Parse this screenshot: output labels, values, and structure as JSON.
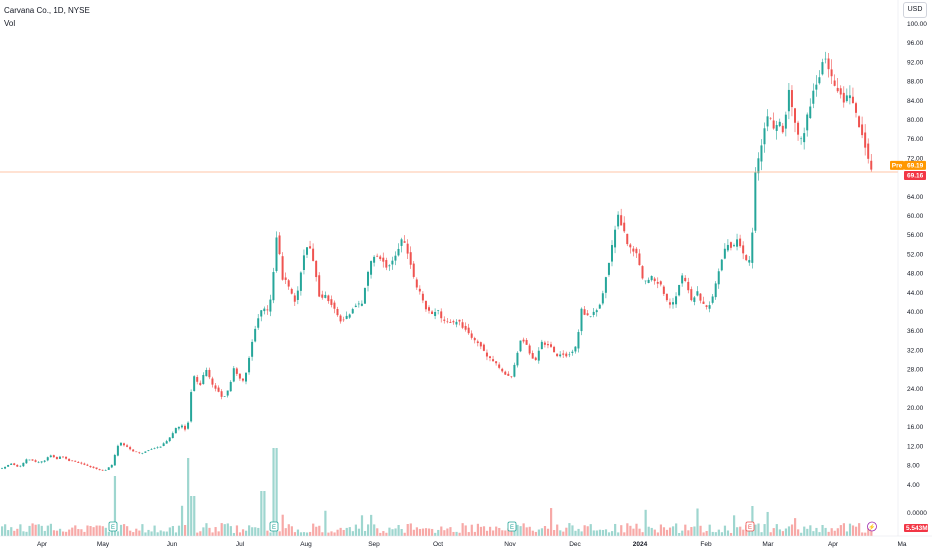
{
  "legend": {
    "title": "Carvana Co., 1D, NYSE",
    "volume": "Vol"
  },
  "currency": "USD",
  "colors": {
    "up": "#26a69a",
    "down": "#ef5350",
    "up_vol": "#9ed6cf",
    "down_vol": "#f7a9a7",
    "price_line": "#ffb38a",
    "pre_badge": "#ff9800",
    "last_badge": "#f23645"
  },
  "chart_data": {
    "type": "candlestick",
    "title": "Carvana Co., 1D, NYSE",
    "x_tick_labels": [
      "Apr",
      "May",
      "Jun",
      "Jul",
      "Aug",
      "Sep",
      "Oct",
      "Nov",
      "Dec",
      "2024",
      "Feb",
      "Mar",
      "Apr",
      "Ma"
    ],
    "y_tick_labels": [
      "100.00",
      "96.00",
      "92.00",
      "88.00",
      "84.00",
      "80.00",
      "76.00",
      "72.00",
      "68.00",
      "64.00",
      "60.00",
      "56.00",
      "52.00",
      "48.00",
      "44.00",
      "40.00",
      "36.00",
      "32.00",
      "28.00",
      "24.00",
      "20.00",
      "16.00",
      "12.00",
      "8.00",
      "4.00",
      "0.0000"
    ],
    "ylim": [
      0,
      100
    ],
    "price_close_path": [
      [
        0,
        7.3
      ],
      [
        10,
        8.4
      ],
      [
        18,
        7.6
      ],
      [
        26,
        9.5
      ],
      [
        35,
        8.7
      ],
      [
        44,
        9.1
      ],
      [
        49,
        10.2
      ],
      [
        56,
        9.3
      ],
      [
        60,
        10.0
      ],
      [
        68,
        9.0
      ],
      [
        76,
        8.7
      ],
      [
        86,
        8.0
      ],
      [
        96,
        7.2
      ],
      [
        104,
        6.9
      ],
      [
        111,
        8.2
      ],
      [
        114,
        10.4
      ],
      [
        118,
        12.9
      ],
      [
        125,
        12.1
      ],
      [
        132,
        11.0
      ],
      [
        140,
        10.6
      ],
      [
        150,
        11.3
      ],
      [
        160,
        12.0
      ],
      [
        168,
        13.6
      ],
      [
        175,
        15.9
      ],
      [
        182,
        16.5
      ],
      [
        186,
        14.6
      ],
      [
        190,
        23.0
      ],
      [
        193,
        26.5
      ],
      [
        199,
        24.8
      ],
      [
        205,
        28.3
      ],
      [
        210,
        25.5
      ],
      [
        216,
        23.7
      ],
      [
        222,
        21.8
      ],
      [
        228,
        24.0
      ],
      [
        233,
        28.4
      ],
      [
        238,
        26.2
      ],
      [
        243,
        25.6
      ],
      [
        248,
        30.3
      ],
      [
        253,
        35.6
      ],
      [
        257,
        38.4
      ],
      [
        262,
        41.0
      ],
      [
        268,
        40.3
      ],
      [
        272,
        47.4
      ],
      [
        276,
        56.5
      ],
      [
        281,
        47.2
      ],
      [
        286,
        46.0
      ],
      [
        291,
        44.1
      ],
      [
        295,
        41.7
      ],
      [
        300,
        48.4
      ],
      [
        305,
        53.5
      ],
      [
        310,
        53.0
      ],
      [
        315,
        47.5
      ],
      [
        319,
        41.8
      ],
      [
        324,
        43.7
      ],
      [
        330,
        41.3
      ],
      [
        336,
        39.6
      ],
      [
        341,
        37.5
      ],
      [
        346,
        39.1
      ],
      [
        351,
        40.3
      ],
      [
        356,
        41.2
      ],
      [
        361,
        42.1
      ],
      [
        366,
        47.0
      ],
      [
        371,
        52.0
      ],
      [
        376,
        51.4
      ],
      [
        381,
        50.8
      ],
      [
        386,
        48.7
      ],
      [
        391,
        50.4
      ],
      [
        396,
        52.3
      ],
      [
        401,
        54.9
      ],
      [
        404,
        54.7
      ],
      [
        409,
        50.2
      ],
      [
        414,
        46.1
      ],
      [
        420,
        44.1
      ],
      [
        425,
        40.6
      ],
      [
        430,
        39.5
      ],
      [
        436,
        40.7
      ],
      [
        441,
        38.6
      ],
      [
        447,
        38.0
      ],
      [
        452,
        37.5
      ],
      [
        456,
        38.4
      ],
      [
        462,
        36.7
      ],
      [
        467,
        35.4
      ],
      [
        472,
        34.4
      ],
      [
        477,
        33.7
      ],
      [
        483,
        31.6
      ],
      [
        489,
        30.4
      ],
      [
        494,
        29.6
      ],
      [
        500,
        28.1
      ],
      [
        505,
        26.8
      ],
      [
        510,
        26.3
      ],
      [
        514,
        29.4
      ],
      [
        519,
        33.8
      ],
      [
        524,
        33.7
      ],
      [
        529,
        31.3
      ],
      [
        534,
        29.3
      ],
      [
        540,
        33.6
      ],
      [
        545,
        33.2
      ],
      [
        550,
        32.6
      ],
      [
        555,
        31.0
      ],
      [
        560,
        31.2
      ],
      [
        566,
        30.5
      ],
      [
        572,
        31.6
      ],
      [
        576,
        33.5
      ],
      [
        580,
        40.7
      ],
      [
        585,
        39.0
      ],
      [
        590,
        39.3
      ],
      [
        595,
        40.2
      ],
      [
        600,
        41.6
      ],
      [
        605,
        47.3
      ],
      [
        609,
        50.8
      ],
      [
        613,
        56.7
      ],
      [
        617,
        59.8
      ],
      [
        622,
        57.1
      ],
      [
        627,
        54.1
      ],
      [
        632,
        52.9
      ],
      [
        637,
        51.3
      ],
      [
        641,
        47.2
      ],
      [
        646,
        46.8
      ],
      [
        651,
        47.6
      ],
      [
        656,
        46.2
      ],
      [
        661,
        45.1
      ],
      [
        666,
        42.4
      ],
      [
        671,
        41.5
      ],
      [
        676,
        44.1
      ],
      [
        681,
        47.4
      ],
      [
        685,
        46.7
      ],
      [
        690,
        42.2
      ],
      [
        696,
        44.2
      ],
      [
        701,
        42.1
      ],
      [
        706,
        41.2
      ],
      [
        711,
        42.2
      ],
      [
        716,
        47.4
      ],
      [
        721,
        50.9
      ],
      [
        726,
        54.6
      ],
      [
        731,
        52.5
      ],
      [
        736,
        55.4
      ],
      [
        741,
        52.5
      ],
      [
        746,
        50.8
      ],
      [
        750,
        51.5
      ],
      [
        754,
        68.4
      ],
      [
        758,
        72.8
      ],
      [
        763,
        77.7
      ],
      [
        768,
        81.6
      ],
      [
        773,
        78.3
      ],
      [
        778,
        80.2
      ],
      [
        783,
        77.4
      ],
      [
        788,
        85.9
      ],
      [
        793,
        80.5
      ],
      [
        798,
        76.1
      ],
      [
        803,
        77.7
      ],
      [
        808,
        82.4
      ],
      [
        813,
        86.2
      ],
      [
        818,
        88.3
      ],
      [
        823,
        93.1
      ],
      [
        828,
        90.3
      ],
      [
        833,
        88.1
      ],
      [
        838,
        85.7
      ],
      [
        843,
        83.3
      ],
      [
        848,
        86.1
      ],
      [
        853,
        83.1
      ],
      [
        858,
        79.1
      ],
      [
        863,
        74.8
      ],
      [
        868,
        70.6
      ],
      [
        873,
        69.2
      ]
    ],
    "last_price": "69.16",
    "pre_market": {
      "label": "Pre",
      "value": "69.19"
    },
    "volume_badge": "5.543M",
    "events": [
      {
        "x_index": 113,
        "label": "E"
      },
      {
        "x_index": 274,
        "label": "E"
      },
      {
        "x_index": 512,
        "label": "E"
      },
      {
        "x_index": 750,
        "label": "E"
      },
      {
        "x_index": 872,
        "label": "⚡"
      }
    ],
    "xlabel": "",
    "ylabel": ""
  }
}
